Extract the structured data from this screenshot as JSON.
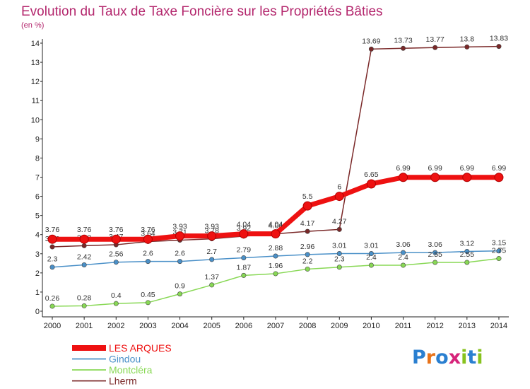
{
  "chart_data": {
    "type": "line",
    "title": "Evolution du Taux de Taxe Foncière sur les Propriétés Bâties",
    "subtitle": "(en %)",
    "x": [
      "2000",
      "2001",
      "2002",
      "2003",
      "2004",
      "2005",
      "2006",
      "2007",
      "2008",
      "2009",
      "2010",
      "2011",
      "2012",
      "2013",
      "2014"
    ],
    "ylim": [
      0,
      14
    ],
    "yticks": [
      "0",
      "1",
      "2",
      "3",
      "4",
      "5",
      "6",
      "7",
      "8",
      "9",
      "10",
      "11",
      "12",
      "13",
      "14"
    ],
    "grid": false,
    "legend": "bottom-left",
    "series": [
      {
        "name": "LES ARQUES",
        "color": "#ee1111",
        "values": [
          3.76,
          3.76,
          3.76,
          3.76,
          3.93,
          3.93,
          4.04,
          4.04,
          5.5,
          6,
          6.65,
          6.99,
          6.99,
          6.99,
          6.99
        ],
        "labels": [
          "3.76",
          "3.76",
          "3.76",
          "3.76",
          "3.93",
          "3.93",
          "4.04",
          "4.04",
          "5.5",
          "6",
          "6.65",
          "6.99",
          "6.99",
          "6.99",
          "6.99"
        ]
      },
      {
        "name": "Gindou",
        "color": "#4a90c8",
        "values": [
          2.3,
          2.42,
          2.56,
          2.6,
          2.6,
          2.7,
          2.79,
          2.88,
          2.96,
          3.01,
          3.01,
          3.06,
          3.06,
          3.12,
          3.15
        ],
        "labels": [
          "2.3",
          "2.42",
          "2.56",
          "2.6",
          "2.6",
          "2.7",
          "2.79",
          "2.88",
          "2.96",
          "3.01",
          "3.01",
          "3.06",
          "3.06",
          "3.12",
          "3.15"
        ]
      },
      {
        "name": "Montcléra",
        "color": "#88d855",
        "values": [
          0.26,
          0.28,
          0.4,
          0.45,
          0.9,
          1.37,
          1.87,
          1.96,
          2.2,
          2.3,
          2.4,
          2.4,
          2.55,
          2.55,
          2.75
        ],
        "labels": [
          "0.26",
          "0.28",
          "0.4",
          "0.45",
          "0.9",
          "1.37",
          "1.87",
          "1.96",
          "2.2",
          "2.3",
          "2.4",
          "2.4",
          "2.55",
          "2.55",
          "2.75"
        ]
      },
      {
        "name": "Lherm",
        "color": "#7a2828",
        "values": [
          3.36,
          3.42,
          3.47,
          3.64,
          3.71,
          3.78,
          3.92,
          4.04,
          4.17,
          4.27,
          13.69,
          13.73,
          13.77,
          13.8,
          13.83
        ],
        "labels": [
          "3.36",
          "3.42",
          "3.47",
          "3.64",
          "3.71",
          "3.78",
          "3.92",
          "4.04",
          "4.17",
          "4.27",
          "13.69",
          "13.73",
          "13.77",
          "13.8",
          "13.83"
        ]
      }
    ]
  },
  "branding": {
    "logo_text": "Proxiti"
  }
}
